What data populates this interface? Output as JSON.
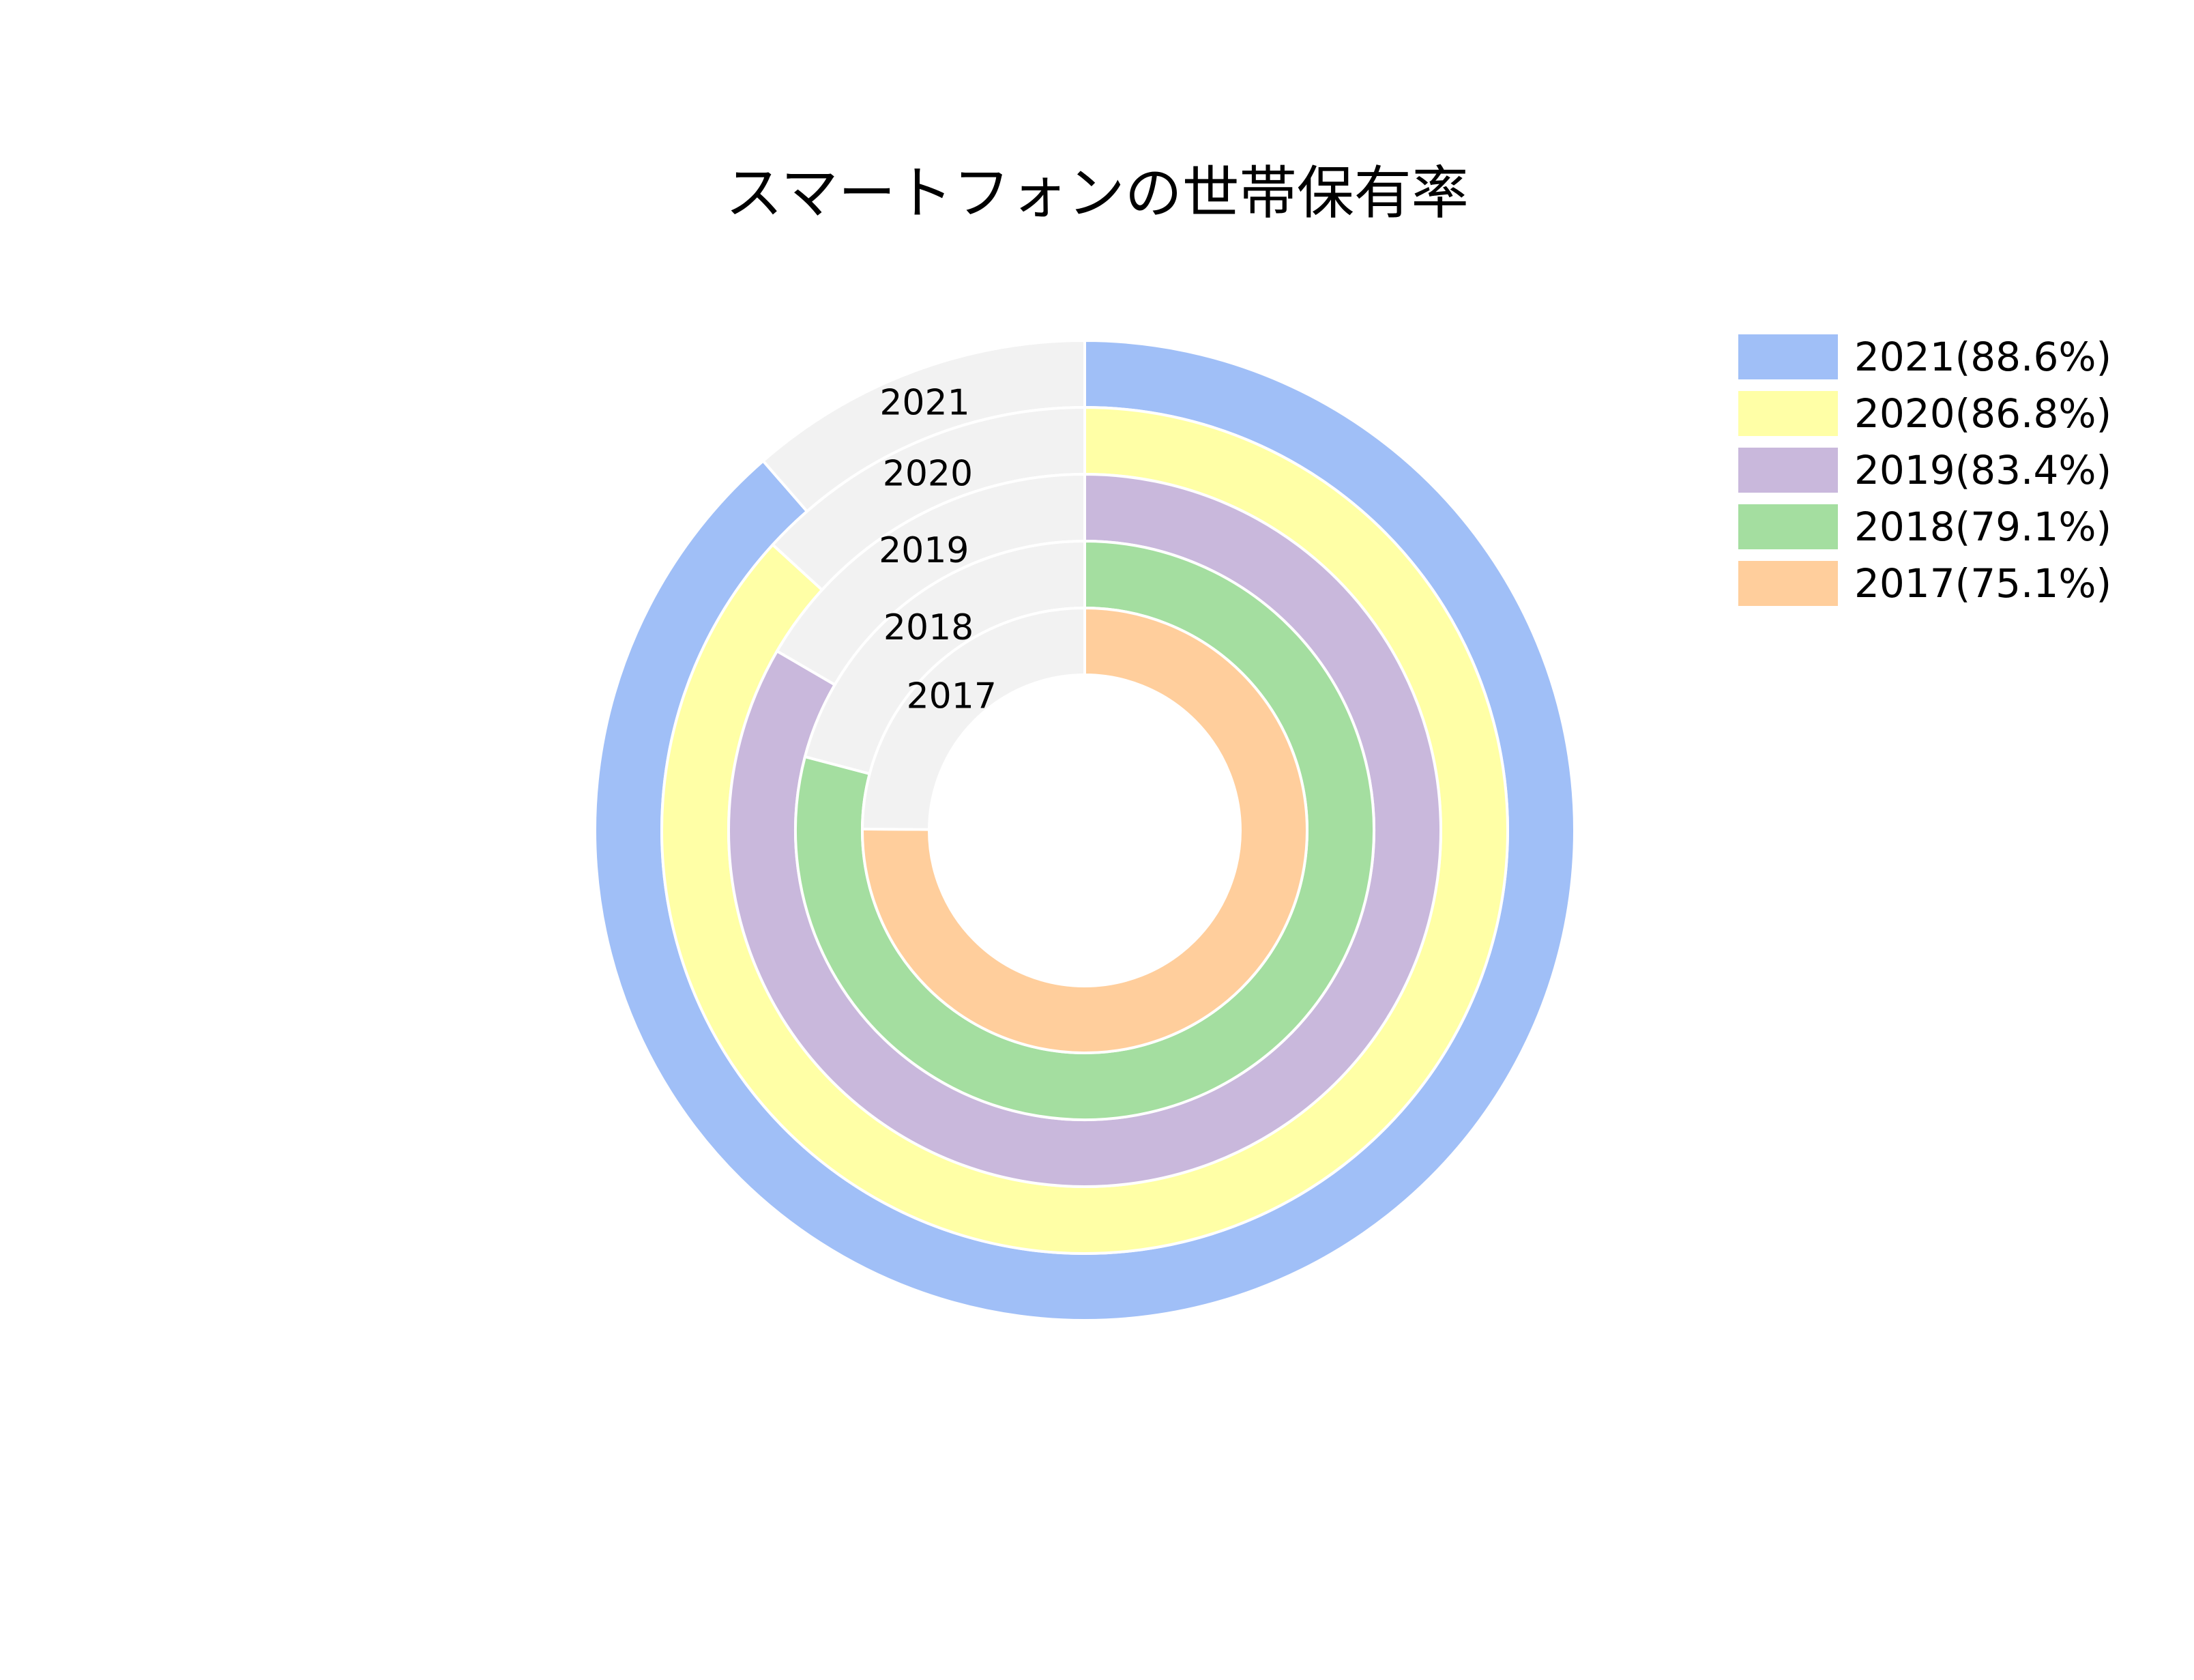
{
  "chart_data": {
    "type": "pie",
    "subtype": "nested-donut",
    "title": "スマートフォンの世帯保有率",
    "remainder_color": "#f2f2f2",
    "rings": [
      {
        "label": "2021",
        "legend": "2021(88.6%)",
        "value": 88.6,
        "color": "#a0bff7"
      },
      {
        "label": "2020",
        "legend": "2020(86.8%)",
        "value": 86.8,
        "color": "#ffffa6"
      },
      {
        "label": "2019",
        "legend": "2019(83.4%)",
        "value": 83.4,
        "color": "#c9b8dc"
      },
      {
        "label": "2018",
        "legend": "2018(79.1%)",
        "value": 79.1,
        "color": "#a4dea0"
      },
      {
        "label": "2017",
        "legend": "2017(75.1%)",
        "value": 75.1,
        "color": "#ffce9c"
      }
    ],
    "legend_position": "top-right"
  }
}
